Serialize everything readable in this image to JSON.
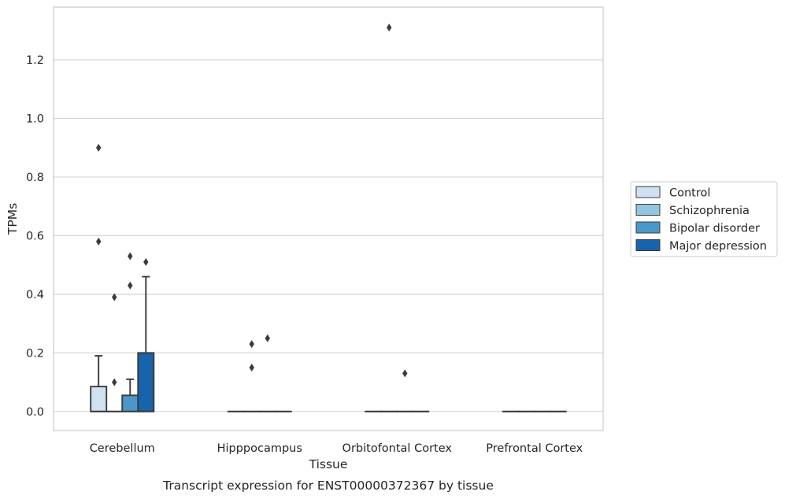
{
  "chart_data": {
    "type": "box",
    "title": "",
    "caption": "Transcript expression for ENST00000372367 by tissue",
    "xlabel": "Tissue",
    "ylabel": "TPMs",
    "ylim": [
      -0.065,
      1.38
    ],
    "yticks": [
      "0.0",
      "0.2",
      "0.4",
      "0.6",
      "0.8",
      "1.0",
      "1.2"
    ],
    "grid": "horizontal",
    "legend_position": "right",
    "categories": [
      "Cerebellum",
      "Hipppocampus",
      "Orbitofontal Cortex",
      "Prefrontal Cortex"
    ],
    "series": [
      {
        "name": "Control",
        "color": "#d0e1f2",
        "boxes": [
          {
            "q1": 0.0,
            "median": 0.0,
            "q3": 0.085,
            "whisker_low": 0.0,
            "whisker_high": 0.19,
            "outliers": [
              0.58,
              0.9
            ]
          },
          {
            "q1": 0.0,
            "median": 0.0,
            "q3": 0.0,
            "whisker_low": 0.0,
            "whisker_high": 0.0,
            "outliers": []
          },
          {
            "q1": 0.0,
            "median": 0.0,
            "q3": 0.0,
            "whisker_low": 0.0,
            "whisker_high": 0.0,
            "outliers": []
          },
          {
            "q1": 0.0,
            "median": 0.0,
            "q3": 0.0,
            "whisker_low": 0.0,
            "whisker_high": 0.0,
            "outliers": []
          }
        ]
      },
      {
        "name": "Schizophrenia",
        "color": "#94c4df",
        "boxes": [
          {
            "q1": 0.0,
            "median": 0.0,
            "q3": 0.0,
            "whisker_low": 0.0,
            "whisker_high": 0.0,
            "outliers": [
              0.1,
              0.39
            ]
          },
          {
            "q1": 0.0,
            "median": 0.0,
            "q3": 0.0,
            "whisker_low": 0.0,
            "whisker_high": 0.0,
            "outliers": [
              0.15,
              0.23
            ]
          },
          {
            "q1": 0.0,
            "median": 0.0,
            "q3": 0.0,
            "whisker_low": 0.0,
            "whisker_high": 0.0,
            "outliers": [
              1.31
            ]
          },
          {
            "q1": 0.0,
            "median": 0.0,
            "q3": 0.0,
            "whisker_low": 0.0,
            "whisker_high": 0.0,
            "outliers": []
          }
        ]
      },
      {
        "name": "Bipolar disorder",
        "color": "#4a98c9",
        "boxes": [
          {
            "q1": 0.0,
            "median": 0.0,
            "q3": 0.055,
            "whisker_low": 0.0,
            "whisker_high": 0.11,
            "outliers": [
              0.43,
              0.53
            ]
          },
          {
            "q1": 0.0,
            "median": 0.0,
            "q3": 0.0,
            "whisker_low": 0.0,
            "whisker_high": 0.0,
            "outliers": [
              0.25
            ]
          },
          {
            "q1": 0.0,
            "median": 0.0,
            "q3": 0.0,
            "whisker_low": 0.0,
            "whisker_high": 0.0,
            "outliers": [
              0.13
            ]
          },
          {
            "q1": 0.0,
            "median": 0.0,
            "q3": 0.0,
            "whisker_low": 0.0,
            "whisker_high": 0.0,
            "outliers": []
          }
        ]
      },
      {
        "name": "Major depression",
        "color": "#1764ab",
        "boxes": [
          {
            "q1": 0.0,
            "median": 0.0,
            "q3": 0.2,
            "whisker_low": 0.0,
            "whisker_high": 0.46,
            "outliers": [
              0.51
            ]
          },
          {
            "q1": 0.0,
            "median": 0.0,
            "q3": 0.0,
            "whisker_low": 0.0,
            "whisker_high": 0.0,
            "outliers": []
          },
          {
            "q1": 0.0,
            "median": 0.0,
            "q3": 0.0,
            "whisker_low": 0.0,
            "whisker_high": 0.0,
            "outliers": []
          },
          {
            "q1": 0.0,
            "median": 0.0,
            "q3": 0.0,
            "whisker_low": 0.0,
            "whisker_high": 0.0,
            "outliers": []
          }
        ]
      }
    ]
  }
}
